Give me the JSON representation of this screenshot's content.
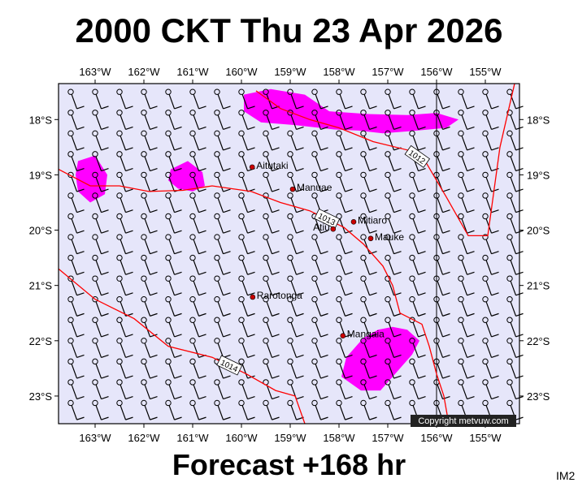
{
  "header": {
    "title": "2000 CKT Thu 23 Apr 2026"
  },
  "footer": {
    "forecast": "Forecast +168 hr",
    "code": "IM2"
  },
  "copyright": "Copyright metvuw.com",
  "axes": {
    "lon_labels": [
      "163°W",
      "162°W",
      "161°W",
      "160°W",
      "159°W",
      "158°W",
      "157°W",
      "156°W",
      "155°W"
    ],
    "lon_values": [
      -163,
      -162,
      -161,
      -160,
      -159,
      -158,
      -157,
      -156,
      -155
    ],
    "lat_labels": [
      "18°S",
      "19°S",
      "20°S",
      "21°S",
      "22°S",
      "23°S"
    ],
    "lat_values": [
      -18,
      -19,
      -20,
      -21,
      -22,
      -23
    ],
    "lon_range": [
      -163.75,
      -154.3
    ],
    "lat_range": [
      -23.5,
      -17.35
    ]
  },
  "colors": {
    "background": "#e6e6fa",
    "isobar": "#ff0000",
    "precip": "#ff00ff",
    "station": "#cc0000"
  },
  "places": [
    {
      "name": "Aitutaki",
      "lon": -159.78,
      "lat": -18.86
    },
    {
      "name": "Manuae",
      "lon": -158.95,
      "lat": -19.26
    },
    {
      "name": "Mitiaro",
      "lon": -157.7,
      "lat": -19.85
    },
    {
      "name": "Atiu",
      "lon": -158.12,
      "lat": -19.98
    },
    {
      "name": "Mauke",
      "lon": -157.35,
      "lat": -20.15
    },
    {
      "name": "Rarotonga",
      "lon": -159.77,
      "lat": -21.21
    },
    {
      "name": "Mangaia",
      "lon": -157.92,
      "lat": -21.91
    }
  ],
  "isobars": [
    {
      "label": "1012",
      "points": [
        [
          -159.7,
          -17.48
        ],
        [
          -159.2,
          -17.8
        ],
        [
          -158.6,
          -18.0
        ],
        [
          -158.0,
          -18.15
        ],
        [
          -157.3,
          -18.4
        ],
        [
          -156.6,
          -18.55
        ],
        [
          -156.2,
          -18.8
        ],
        [
          -155.8,
          -19.4
        ],
        [
          -155.35,
          -20.1
        ],
        [
          -154.95,
          -20.1
        ],
        [
          -154.7,
          -18.5
        ],
        [
          -154.4,
          -17.35
        ]
      ]
    },
    {
      "label": "1013",
      "points": [
        [
          -163.75,
          -18.9
        ],
        [
          -163.1,
          -19.2
        ],
        [
          -162.5,
          -19.2
        ],
        [
          -161.9,
          -19.3
        ],
        [
          -161.2,
          -19.28
        ],
        [
          -160.6,
          -19.2
        ],
        [
          -159.8,
          -19.3
        ],
        [
          -159.2,
          -19.5
        ],
        [
          -158.6,
          -19.65
        ],
        [
          -157.9,
          -19.95
        ],
        [
          -157.5,
          -20.25
        ],
        [
          -157.1,
          -20.65
        ],
        [
          -156.9,
          -21.0
        ],
        [
          -156.75,
          -21.5
        ],
        [
          -156.3,
          -21.7
        ],
        [
          -156.15,
          -22.1
        ],
        [
          -156.0,
          -22.6
        ],
        [
          -155.85,
          -23.0
        ],
        [
          -155.75,
          -23.5
        ]
      ]
    },
    {
      "label": "1014",
      "points": [
        [
          -163.75,
          -20.7
        ],
        [
          -163.0,
          -21.25
        ],
        [
          -162.2,
          -21.6
        ],
        [
          -161.5,
          -22.1
        ],
        [
          -160.6,
          -22.3
        ],
        [
          -159.9,
          -22.6
        ],
        [
          -159.3,
          -22.9
        ],
        [
          -158.9,
          -23.0
        ],
        [
          -158.7,
          -23.5
        ]
      ]
    }
  ],
  "precip_areas": [
    [
      [
        -159.95,
        -17.55
      ],
      [
        -159.4,
        -17.45
      ],
      [
        -158.7,
        -17.55
      ],
      [
        -158.2,
        -17.85
      ],
      [
        -157.4,
        -17.9
      ],
      [
        -156.6,
        -17.92
      ],
      [
        -156.0,
        -17.88
      ],
      [
        -155.55,
        -18.0
      ],
      [
        -155.8,
        -18.15
      ],
      [
        -156.4,
        -18.2
      ],
      [
        -157.1,
        -18.25
      ],
      [
        -157.6,
        -18.2
      ],
      [
        -158.1,
        -18.18
      ],
      [
        -158.9,
        -18.1
      ],
      [
        -159.6,
        -18.05
      ],
      [
        -159.95,
        -17.85
      ]
    ],
    [
      [
        -163.35,
        -18.75
      ],
      [
        -163.0,
        -18.65
      ],
      [
        -162.75,
        -19.0
      ],
      [
        -162.8,
        -19.35
      ],
      [
        -163.1,
        -19.5
      ],
      [
        -163.35,
        -19.3
      ],
      [
        -163.4,
        -19.0
      ]
    ],
    [
      [
        -161.45,
        -18.9
      ],
      [
        -161.1,
        -18.75
      ],
      [
        -160.8,
        -18.95
      ],
      [
        -160.75,
        -19.2
      ],
      [
        -161.0,
        -19.3
      ],
      [
        -161.3,
        -19.25
      ],
      [
        -161.5,
        -19.1
      ]
    ],
    [
      [
        -156.9,
        -21.75
      ],
      [
        -156.6,
        -21.8
      ],
      [
        -156.35,
        -22.0
      ],
      [
        -156.5,
        -22.25
      ],
      [
        -156.85,
        -22.6
      ],
      [
        -157.15,
        -22.9
      ],
      [
        -157.55,
        -22.9
      ],
      [
        -157.95,
        -22.65
      ],
      [
        -157.85,
        -22.3
      ],
      [
        -157.5,
        -21.95
      ],
      [
        -157.2,
        -21.8
      ]
    ]
  ],
  "wind_barbs": {
    "lon_start": -163.5,
    "lon_step": 0.5,
    "cols": 19,
    "lat_start": -17.5,
    "lat_step": -0.375,
    "rows": 17,
    "stem_direction_deg": 160,
    "barb_length_units": 1
  }
}
